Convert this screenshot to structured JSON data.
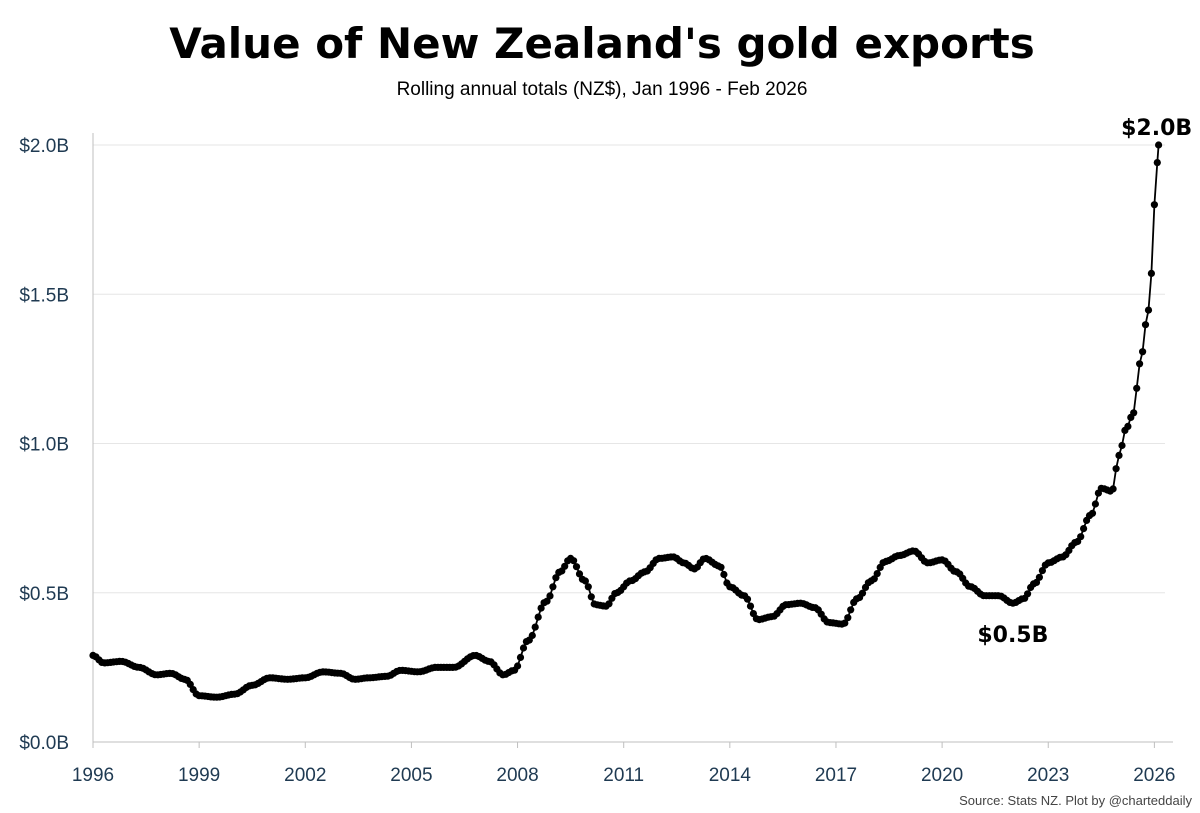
{
  "chart_data": {
    "type": "line",
    "title": "Value of New Zealand's gold exports",
    "subtitle": "Rolling annual totals (NZ$), Jan 1996 - Feb 2026",
    "xlabel": "",
    "ylabel": "",
    "xlim": [
      1996,
      2026.3
    ],
    "ylim": [
      0,
      2.0
    ],
    "grid": true,
    "legend": "none",
    "series_color": "#000000",
    "y_ticks": [
      {
        "value": 0,
        "label": "$0.0B"
      },
      {
        "value": 0.5,
        "label": "$0.5B"
      },
      {
        "value": 1.0,
        "label": "$1.0B"
      },
      {
        "value": 1.5,
        "label": "$1.5B"
      },
      {
        "value": 2.0,
        "label": "$2.0B"
      }
    ],
    "x_ticks": [
      {
        "value": 1996,
        "label": "1996"
      },
      {
        "value": 1999,
        "label": "1999"
      },
      {
        "value": 2002,
        "label": "2002"
      },
      {
        "value": 2005,
        "label": "2005"
      },
      {
        "value": 2008,
        "label": "2008"
      },
      {
        "value": 2011,
        "label": "2011"
      },
      {
        "value": 2014,
        "label": "2014"
      },
      {
        "value": 2017,
        "label": "2017"
      },
      {
        "value": 2020,
        "label": "2020"
      },
      {
        "value": 2023,
        "label": "2023"
      },
      {
        "value": 2026,
        "label": "2026"
      }
    ],
    "anchors": [
      [
        1996.0,
        0.29
      ],
      [
        1996.3,
        0.265
      ],
      [
        1996.8,
        0.27
      ],
      [
        1997.3,
        0.25
      ],
      [
        1997.8,
        0.225
      ],
      [
        1998.2,
        0.23
      ],
      [
        1998.6,
        0.21
      ],
      [
        1999.0,
        0.155
      ],
      [
        1999.5,
        0.15
      ],
      [
        2000.0,
        0.16
      ],
      [
        2000.5,
        0.19
      ],
      [
        2001.0,
        0.215
      ],
      [
        2001.5,
        0.21
      ],
      [
        2002.0,
        0.215
      ],
      [
        2002.5,
        0.235
      ],
      [
        2003.0,
        0.23
      ],
      [
        2003.4,
        0.21
      ],
      [
        2003.8,
        0.215
      ],
      [
        2004.3,
        0.22
      ],
      [
        2004.7,
        0.24
      ],
      [
        2005.2,
        0.235
      ],
      [
        2005.7,
        0.25
      ],
      [
        2006.2,
        0.25
      ],
      [
        2006.8,
        0.29
      ],
      [
        2007.2,
        0.27
      ],
      [
        2007.6,
        0.225
      ],
      [
        2007.9,
        0.24
      ],
      [
        2008.3,
        0.34
      ],
      [
        2008.8,
        0.47
      ],
      [
        2009.2,
        0.57
      ],
      [
        2009.5,
        0.615
      ],
      [
        2009.9,
        0.54
      ],
      [
        2010.2,
        0.46
      ],
      [
        2010.5,
        0.455
      ],
      [
        2010.8,
        0.5
      ],
      [
        2011.2,
        0.54
      ],
      [
        2011.6,
        0.57
      ],
      [
        2012.0,
        0.615
      ],
      [
        2012.4,
        0.62
      ],
      [
        2012.7,
        0.6
      ],
      [
        2013.0,
        0.58
      ],
      [
        2013.3,
        0.615
      ],
      [
        2013.7,
        0.59
      ],
      [
        2014.0,
        0.52
      ],
      [
        2014.4,
        0.49
      ],
      [
        2014.8,
        0.41
      ],
      [
        2015.2,
        0.42
      ],
      [
        2015.6,
        0.46
      ],
      [
        2016.0,
        0.465
      ],
      [
        2016.4,
        0.45
      ],
      [
        2016.8,
        0.4
      ],
      [
        2017.2,
        0.395
      ],
      [
        2017.6,
        0.48
      ],
      [
        2018.0,
        0.54
      ],
      [
        2018.4,
        0.605
      ],
      [
        2018.8,
        0.625
      ],
      [
        2019.2,
        0.64
      ],
      [
        2019.6,
        0.6
      ],
      [
        2020.0,
        0.61
      ],
      [
        2020.4,
        0.57
      ],
      [
        2020.8,
        0.52
      ],
      [
        2021.2,
        0.49
      ],
      [
        2021.6,
        0.49
      ],
      [
        2022.0,
        0.465
      ],
      [
        2022.3,
        0.48
      ],
      [
        2022.6,
        0.53
      ],
      [
        2023.0,
        0.6
      ],
      [
        2023.4,
        0.62
      ],
      [
        2023.8,
        0.67
      ],
      [
        2024.2,
        0.76
      ],
      [
        2024.5,
        0.85
      ],
      [
        2024.8,
        0.84
      ],
      [
        2025.0,
        0.96
      ],
      [
        2025.2,
        1.05
      ],
      [
        2025.4,
        1.1
      ],
      [
        2025.6,
        1.27
      ],
      [
        2025.8,
        1.42
      ],
      [
        2025.92,
        1.57
      ],
      [
        2026.0,
        1.8
      ],
      [
        2026.05,
        1.89
      ],
      [
        2026.12,
        2.0
      ]
    ],
    "annotations": [
      {
        "text": "$2.0B",
        "x": 2026.12,
        "y": 2.0
      },
      {
        "text": "$0.5B",
        "x": 2022.0,
        "y": 0.465
      }
    ]
  },
  "source": "Source: Stats NZ.  Plot by @charteddaily"
}
